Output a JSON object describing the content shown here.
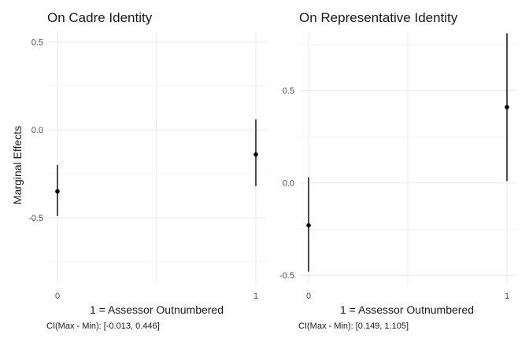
{
  "ylabel": "Marginal Effects",
  "chart_data": [
    {
      "type": "scatter",
      "title": "On Cadre Identity",
      "xlabel": "1 = Assessor Outnumbered",
      "x_ticks": [
        "0",
        "1"
      ],
      "y_ticks": [
        "0.5",
        "0.0",
        "-0.5"
      ],
      "ylim": [
        -0.88,
        0.56
      ],
      "points": [
        {
          "x": 0,
          "y": -0.35,
          "lower": -0.49,
          "upper": -0.2
        },
        {
          "x": 1,
          "y": -0.14,
          "lower": -0.32,
          "upper": 0.06
        }
      ],
      "caption": "CI(Max - Min): [-0.013, 0.446]"
    },
    {
      "type": "scatter",
      "title": "On Representative Identity",
      "xlabel": "1 = Assessor Outnumbered",
      "x_ticks": [
        "0",
        "1"
      ],
      "y_ticks": [
        "0.5",
        "0.0",
        "-0.5"
      ],
      "ylim": [
        -0.55,
        0.82
      ],
      "points": [
        {
          "x": 0,
          "y": -0.23,
          "lower": -0.48,
          "upper": 0.03
        },
        {
          "x": 1,
          "y": 0.41,
          "lower": 0.01,
          "upper": 0.81
        }
      ],
      "caption": "CI(Max - Min): [0.149, 1.105]"
    }
  ]
}
